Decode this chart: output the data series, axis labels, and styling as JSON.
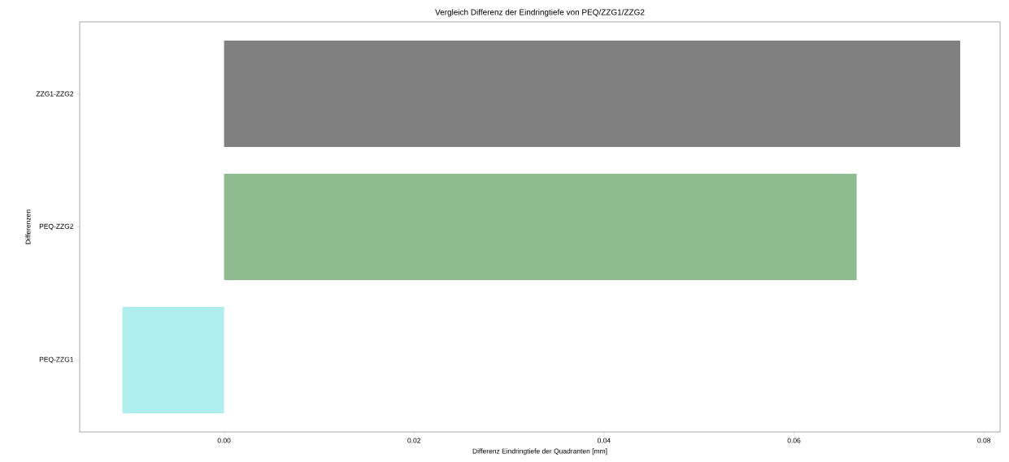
{
  "chart_data": {
    "type": "bar",
    "orientation": "horizontal",
    "title": "Vergleich Differenz der Eindringtiefe von PEQ/ZZG1/ZZG2",
    "xlabel": "Differenz Eindringtiefe der Quadranten [mm]",
    "ylabel": "Differenzen",
    "categories": [
      "ZZG1-ZZG2",
      "PEQ-ZZG2",
      "PEQ-ZZG1"
    ],
    "values": [
      0.0775,
      0.0666,
      -0.0107
    ],
    "colors": [
      "#808080",
      "#8fbc8f",
      "#afeeee"
    ],
    "xlim": [
      -0.0152,
      0.0817
    ],
    "xticks": [
      {
        "value": 0,
        "label": "0.00"
      },
      {
        "value": 0.02,
        "label": "0.02"
      },
      {
        "value": 0.04,
        "label": "0.04"
      },
      {
        "value": 0.06,
        "label": "0.06"
      },
      {
        "value": 0.08,
        "label": "0.08"
      }
    ]
  }
}
